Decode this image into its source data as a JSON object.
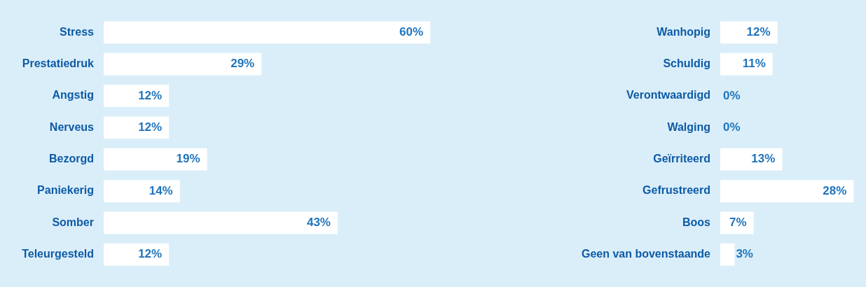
{
  "chart_data": [
    {
      "type": "bar",
      "orientation": "horizontal",
      "categories": [
        "Stress",
        "Prestatiedruk",
        "Angstig",
        "Nerveus",
        "Bezorgd",
        "Paniekerig",
        "Somber",
        "Teleurgesteld"
      ],
      "values": [
        60,
        29,
        12,
        12,
        19,
        14,
        43,
        12
      ],
      "value_labels": [
        "60%",
        "29%",
        "12%",
        "12%",
        "19%",
        "14%",
        "43%",
        "12%"
      ],
      "color": "#ffffff"
    },
    {
      "type": "bar",
      "orientation": "horizontal",
      "categories": [
        "Wanhopig",
        "Schuldig",
        "Verontwaardigd",
        "Walging",
        "Geïrriteerd",
        "Gefrustreerd",
        "Boos",
        "Geen van bovenstaande"
      ],
      "values": [
        12,
        11,
        0,
        0,
        13,
        28,
        7,
        3
      ],
      "value_labels": [
        "12%",
        "11%",
        "0%",
        "0%",
        "13%",
        "28%",
        "7%",
        "3%"
      ],
      "color": "#ffffff"
    }
  ]
}
